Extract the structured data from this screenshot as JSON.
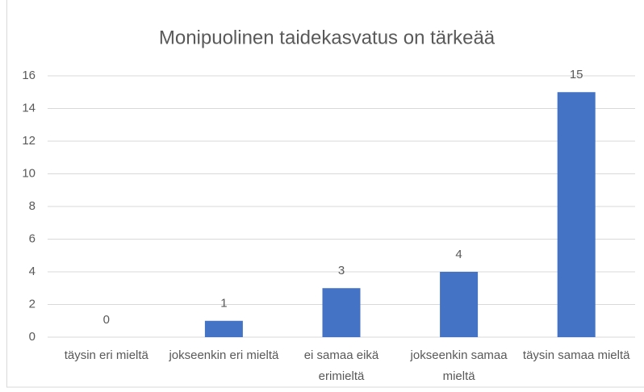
{
  "chart_data": {
    "type": "bar",
    "title": "Monipuolinen taidekasvatus on tärkeää",
    "categories": [
      "täysin eri mieltä",
      "jokseenkin eri mieltä",
      "ei samaa eikä erimieltä",
      "jokseenkin samaa mieltä",
      "täysin samaa mieltä"
    ],
    "values": [
      0,
      1,
      3,
      4,
      15
    ],
    "color": "#4472c4",
    "ylim": [
      0,
      16
    ],
    "yticks": [
      0,
      2,
      4,
      6,
      8,
      10,
      12,
      14,
      16
    ],
    "grid": true
  }
}
